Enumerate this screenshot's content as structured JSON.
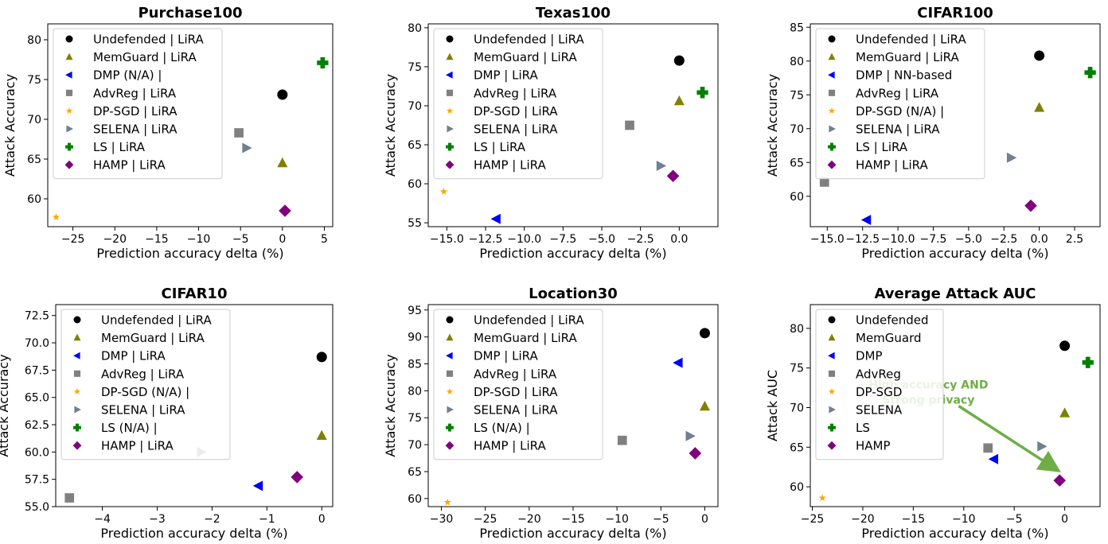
{
  "figure": {
    "legend_note": "Each panel plots Attack Accuracy (or AUC) against Prediction accuracy delta (%) for 8 defenses."
  },
  "series_styles": [
    {
      "key": "undef",
      "marker": "circle",
      "color": "#000000"
    },
    {
      "key": "memguard",
      "marker": "triangle-up",
      "color": "#808000"
    },
    {
      "key": "dmp",
      "marker": "triangle-left",
      "color": "#0000ff"
    },
    {
      "key": "advreg",
      "marker": "square",
      "color": "#808080"
    },
    {
      "key": "dpsgd",
      "marker": "star",
      "color": "#ffa500"
    },
    {
      "key": "selena",
      "marker": "triangle-right",
      "color": "#708090"
    },
    {
      "key": "ls",
      "marker": "plus",
      "color": "#008000"
    },
    {
      "key": "hamp",
      "marker": "diamond",
      "color": "#800080"
    }
  ],
  "chart_data": [
    {
      "type": "scatter",
      "title": "Purchase100",
      "xlabel": "Prediction accuracy delta (%)",
      "ylabel": "Attack Accuracy",
      "xlim": [
        -28,
        6
      ],
      "ylim": [
        56.5,
        82
      ],
      "xticks": [
        -25,
        -20,
        -15,
        -10,
        -5,
        0,
        5
      ],
      "xticklabels": [
        "−25",
        "−20",
        "−15",
        "−10",
        "−5",
        "0",
        "5"
      ],
      "yticks": [
        60,
        65,
        70,
        75,
        80
      ],
      "yticklabels": [
        "60",
        "65",
        "70",
        "75",
        "80"
      ],
      "legend_position": "upper-left",
      "series": [
        {
          "key": "undef",
          "name": "Undefended | LiRA",
          "x": 0,
          "y": 73.1
        },
        {
          "key": "memguard",
          "name": "MemGuard | LiRA",
          "x": 0,
          "y": 64.5
        },
        {
          "key": "dmp",
          "name": "DMP (N/A) |",
          "x": null,
          "y": null
        },
        {
          "key": "advreg",
          "name": "AdvReg | LiRA",
          "x": -5.2,
          "y": 68.3
        },
        {
          "key": "dpsgd",
          "name": "DP-SGD | LiRA",
          "x": -27,
          "y": 57.7
        },
        {
          "key": "selena",
          "name": "SELENA | LiRA",
          "x": -4.3,
          "y": 66.4
        },
        {
          "key": "ls",
          "name": "LS | LiRA",
          "x": 4.8,
          "y": 77.1
        },
        {
          "key": "hamp",
          "name": "HAMP | LiRA",
          "x": 0.3,
          "y": 58.5
        }
      ]
    },
    {
      "type": "scatter",
      "title": "Texas100",
      "xlabel": "Prediction accuracy delta (%)",
      "ylabel": "Attack Accuracy",
      "xlim": [
        -16.2,
        2.5
      ],
      "ylim": [
        54.5,
        80.5
      ],
      "xticks": [
        -15,
        -12.5,
        -10,
        -7.5,
        -5,
        -2.5,
        0
      ],
      "xticklabels": [
        "−15.0",
        "−12.5",
        "−10.0",
        "−7.5",
        "−5.0",
        "−2.5",
        "0.0"
      ],
      "yticks": [
        55,
        60,
        65,
        70,
        75,
        80
      ],
      "yticklabels": [
        "55",
        "60",
        "65",
        "70",
        "75",
        "80"
      ],
      "legend_position": "upper-left",
      "series": [
        {
          "key": "undef",
          "name": "Undefended | LiRA",
          "x": 0,
          "y": 75.8
        },
        {
          "key": "memguard",
          "name": "MemGuard | LiRA",
          "x": 0,
          "y": 70.6
        },
        {
          "key": "dmp",
          "name": "DMP | LiRA",
          "x": -11.8,
          "y": 55.5
        },
        {
          "key": "advreg",
          "name": "AdvReg | LiRA",
          "x": -3.2,
          "y": 67.5
        },
        {
          "key": "dpsgd",
          "name": "DP-SGD | LiRA",
          "x": -15.2,
          "y": 59.0
        },
        {
          "key": "selena",
          "name": "SELENA | LiRA",
          "x": -1.2,
          "y": 62.3
        },
        {
          "key": "ls",
          "name": "LS | LiRA",
          "x": 1.5,
          "y": 71.7
        },
        {
          "key": "hamp",
          "name": "HAMP | LiRA",
          "x": -0.4,
          "y": 61.0
        }
      ]
    },
    {
      "type": "scatter",
      "title": "CIFAR100",
      "xlabel": "Prediction accuracy delta (%)",
      "ylabel": "Attack Accuracy",
      "xlim": [
        -16.2,
        4.3
      ],
      "ylim": [
        55.5,
        85.5
      ],
      "xticks": [
        -15,
        -12.5,
        -10,
        -7.5,
        -5,
        -2.5,
        0,
        2.5
      ],
      "xticklabels": [
        "−15.0",
        "−12.5",
        "−10.0",
        "−7.5",
        "−5.0",
        "−2.5",
        "0.0",
        "2.5"
      ],
      "yticks": [
        60,
        65,
        70,
        75,
        80,
        85
      ],
      "yticklabels": [
        "60",
        "65",
        "70",
        "75",
        "80",
        "85"
      ],
      "legend_position": "upper-left",
      "series": [
        {
          "key": "undef",
          "name": "Undefended | LiRA",
          "x": 0,
          "y": 80.8
        },
        {
          "key": "memguard",
          "name": "MemGuard | LiRA",
          "x": 0,
          "y": 73.1
        },
        {
          "key": "dmp",
          "name": "DMP | NN-based",
          "x": -12.2,
          "y": 56.5
        },
        {
          "key": "advreg",
          "name": "AdvReg | LiRA",
          "x": -15.2,
          "y": 62.1
        },
        {
          "key": "dpsgd",
          "name": "DP-SGD (N/A) |",
          "x": null,
          "y": null
        },
        {
          "key": "selena",
          "name": "SELENA | LiRA",
          "x": -2,
          "y": 65.7
        },
        {
          "key": "ls",
          "name": "LS | LiRA",
          "x": 3.6,
          "y": 78.3
        },
        {
          "key": "hamp",
          "name": "HAMP | LiRA",
          "x": -0.6,
          "y": 58.6
        }
      ]
    },
    {
      "type": "scatter",
      "title": "CIFAR10",
      "xlabel": "Prediction accuracy delta (%)",
      "ylabel": "Attack Accuracy",
      "xlim": [
        -4.85,
        0.2
      ],
      "ylim": [
        55.0,
        73.5
      ],
      "xticks": [
        -4,
        -3,
        -2,
        -1,
        0
      ],
      "xticklabels": [
        "−4",
        "−3",
        "−2",
        "−1",
        "0"
      ],
      "yticks": [
        55.0,
        57.5,
        60.0,
        62.5,
        65.0,
        67.5,
        70.0,
        72.5
      ],
      "yticklabels": [
        "55.0",
        "57.5",
        "60.0",
        "62.5",
        "65.0",
        "67.5",
        "70.0",
        "72.5"
      ],
      "legend_position": "upper-left",
      "series": [
        {
          "key": "undef",
          "name": "Undefended | LiRA",
          "x": 0,
          "y": 68.7
        },
        {
          "key": "memguard",
          "name": "MemGuard | LiRA",
          "x": 0,
          "y": 61.5
        },
        {
          "key": "dmp",
          "name": "DMP | LiRA",
          "x": -1.15,
          "y": 56.9
        },
        {
          "key": "advreg",
          "name": "AdvReg | LiRA",
          "x": -4.6,
          "y": 55.8
        },
        {
          "key": "dpsgd",
          "name": "DP-SGD (N/A) |",
          "x": null,
          "y": null
        },
        {
          "key": "selena",
          "name": "SELENA | LiRA",
          "x": -2.2,
          "y": 60.0
        },
        {
          "key": "ls",
          "name": "LS (N/A) |",
          "x": null,
          "y": null
        },
        {
          "key": "hamp",
          "name": "HAMP | LiRA",
          "x": -0.45,
          "y": 57.7
        }
      ]
    },
    {
      "type": "scatter",
      "title": "Location30",
      "xlabel": "Prediction accuracy delta (%)",
      "ylabel": "Attack Accuracy",
      "xlim": [
        -31.5,
        1.5
      ],
      "ylim": [
        58.5,
        96
      ],
      "xticks": [
        -30,
        -25,
        -20,
        -15,
        -10,
        -5,
        0
      ],
      "xticklabels": [
        "−30",
        "−25",
        "−20",
        "−15",
        "−10",
        "−5",
        "0"
      ],
      "yticks": [
        60,
        65,
        70,
        75,
        80,
        85,
        90,
        95
      ],
      "yticklabels": [
        "60",
        "65",
        "70",
        "75",
        "80",
        "85",
        "90",
        "95"
      ],
      "legend_position": "upper-left",
      "series": [
        {
          "key": "undef",
          "name": "Undefended | LiRA",
          "x": 0,
          "y": 90.7
        },
        {
          "key": "memguard",
          "name": "MemGuard | LiRA",
          "x": 0,
          "y": 77.1
        },
        {
          "key": "dmp",
          "name": "DMP | LiRA",
          "x": -3.0,
          "y": 85.2
        },
        {
          "key": "advreg",
          "name": "AdvReg | LiRA",
          "x": -9.4,
          "y": 70.8
        },
        {
          "key": "dpsgd",
          "name": "DP-SGD | LiRA",
          "x": -29.3,
          "y": 59.3
        },
        {
          "key": "selena",
          "name": "SELENA | LiRA",
          "x": -1.7,
          "y": 71.6
        },
        {
          "key": "ls",
          "name": "LS (N/A) |",
          "x": null,
          "y": null
        },
        {
          "key": "hamp",
          "name": "HAMP | LiRA",
          "x": -1.1,
          "y": 68.4
        }
      ]
    },
    {
      "type": "scatter",
      "title": "Average Attack AUC",
      "xlabel": "Prediction accuracy delta (%)",
      "ylabel": "Attack AUC",
      "xlim": [
        -25.2,
        3.5
      ],
      "ylim": [
        57.5,
        83
      ],
      "xticks": [
        -25,
        -20,
        -15,
        -10,
        -5,
        0
      ],
      "xticklabels": [
        "−25",
        "−20",
        "−15",
        "−10",
        "−5",
        "0"
      ],
      "yticks": [
        60,
        65,
        70,
        75,
        80
      ],
      "yticklabels": [
        "60",
        "65",
        "70",
        "75",
        "80"
      ],
      "legend_position": "upper-left",
      "annotation": {
        "lines": [
          "High accuracy AND",
          "Strong privacy"
        ],
        "color": "#70ad47"
      },
      "series": [
        {
          "key": "undef",
          "name": "Undefended",
          "x": 0,
          "y": 77.8
        },
        {
          "key": "memguard",
          "name": "MemGuard",
          "x": 0,
          "y": 69.3
        },
        {
          "key": "dmp",
          "name": "DMP",
          "x": -7.0,
          "y": 63.5
        },
        {
          "key": "advreg",
          "name": "AdvReg",
          "x": -7.6,
          "y": 64.9
        },
        {
          "key": "dpsgd",
          "name": "DP-SGD",
          "x": -24.0,
          "y": 58.6
        },
        {
          "key": "selena",
          "name": "SELENA",
          "x": -2.3,
          "y": 65.1
        },
        {
          "key": "ls",
          "name": "LS",
          "x": 2.3,
          "y": 75.7
        },
        {
          "key": "hamp",
          "name": "HAMP",
          "x": -0.5,
          "y": 60.8
        }
      ]
    }
  ]
}
